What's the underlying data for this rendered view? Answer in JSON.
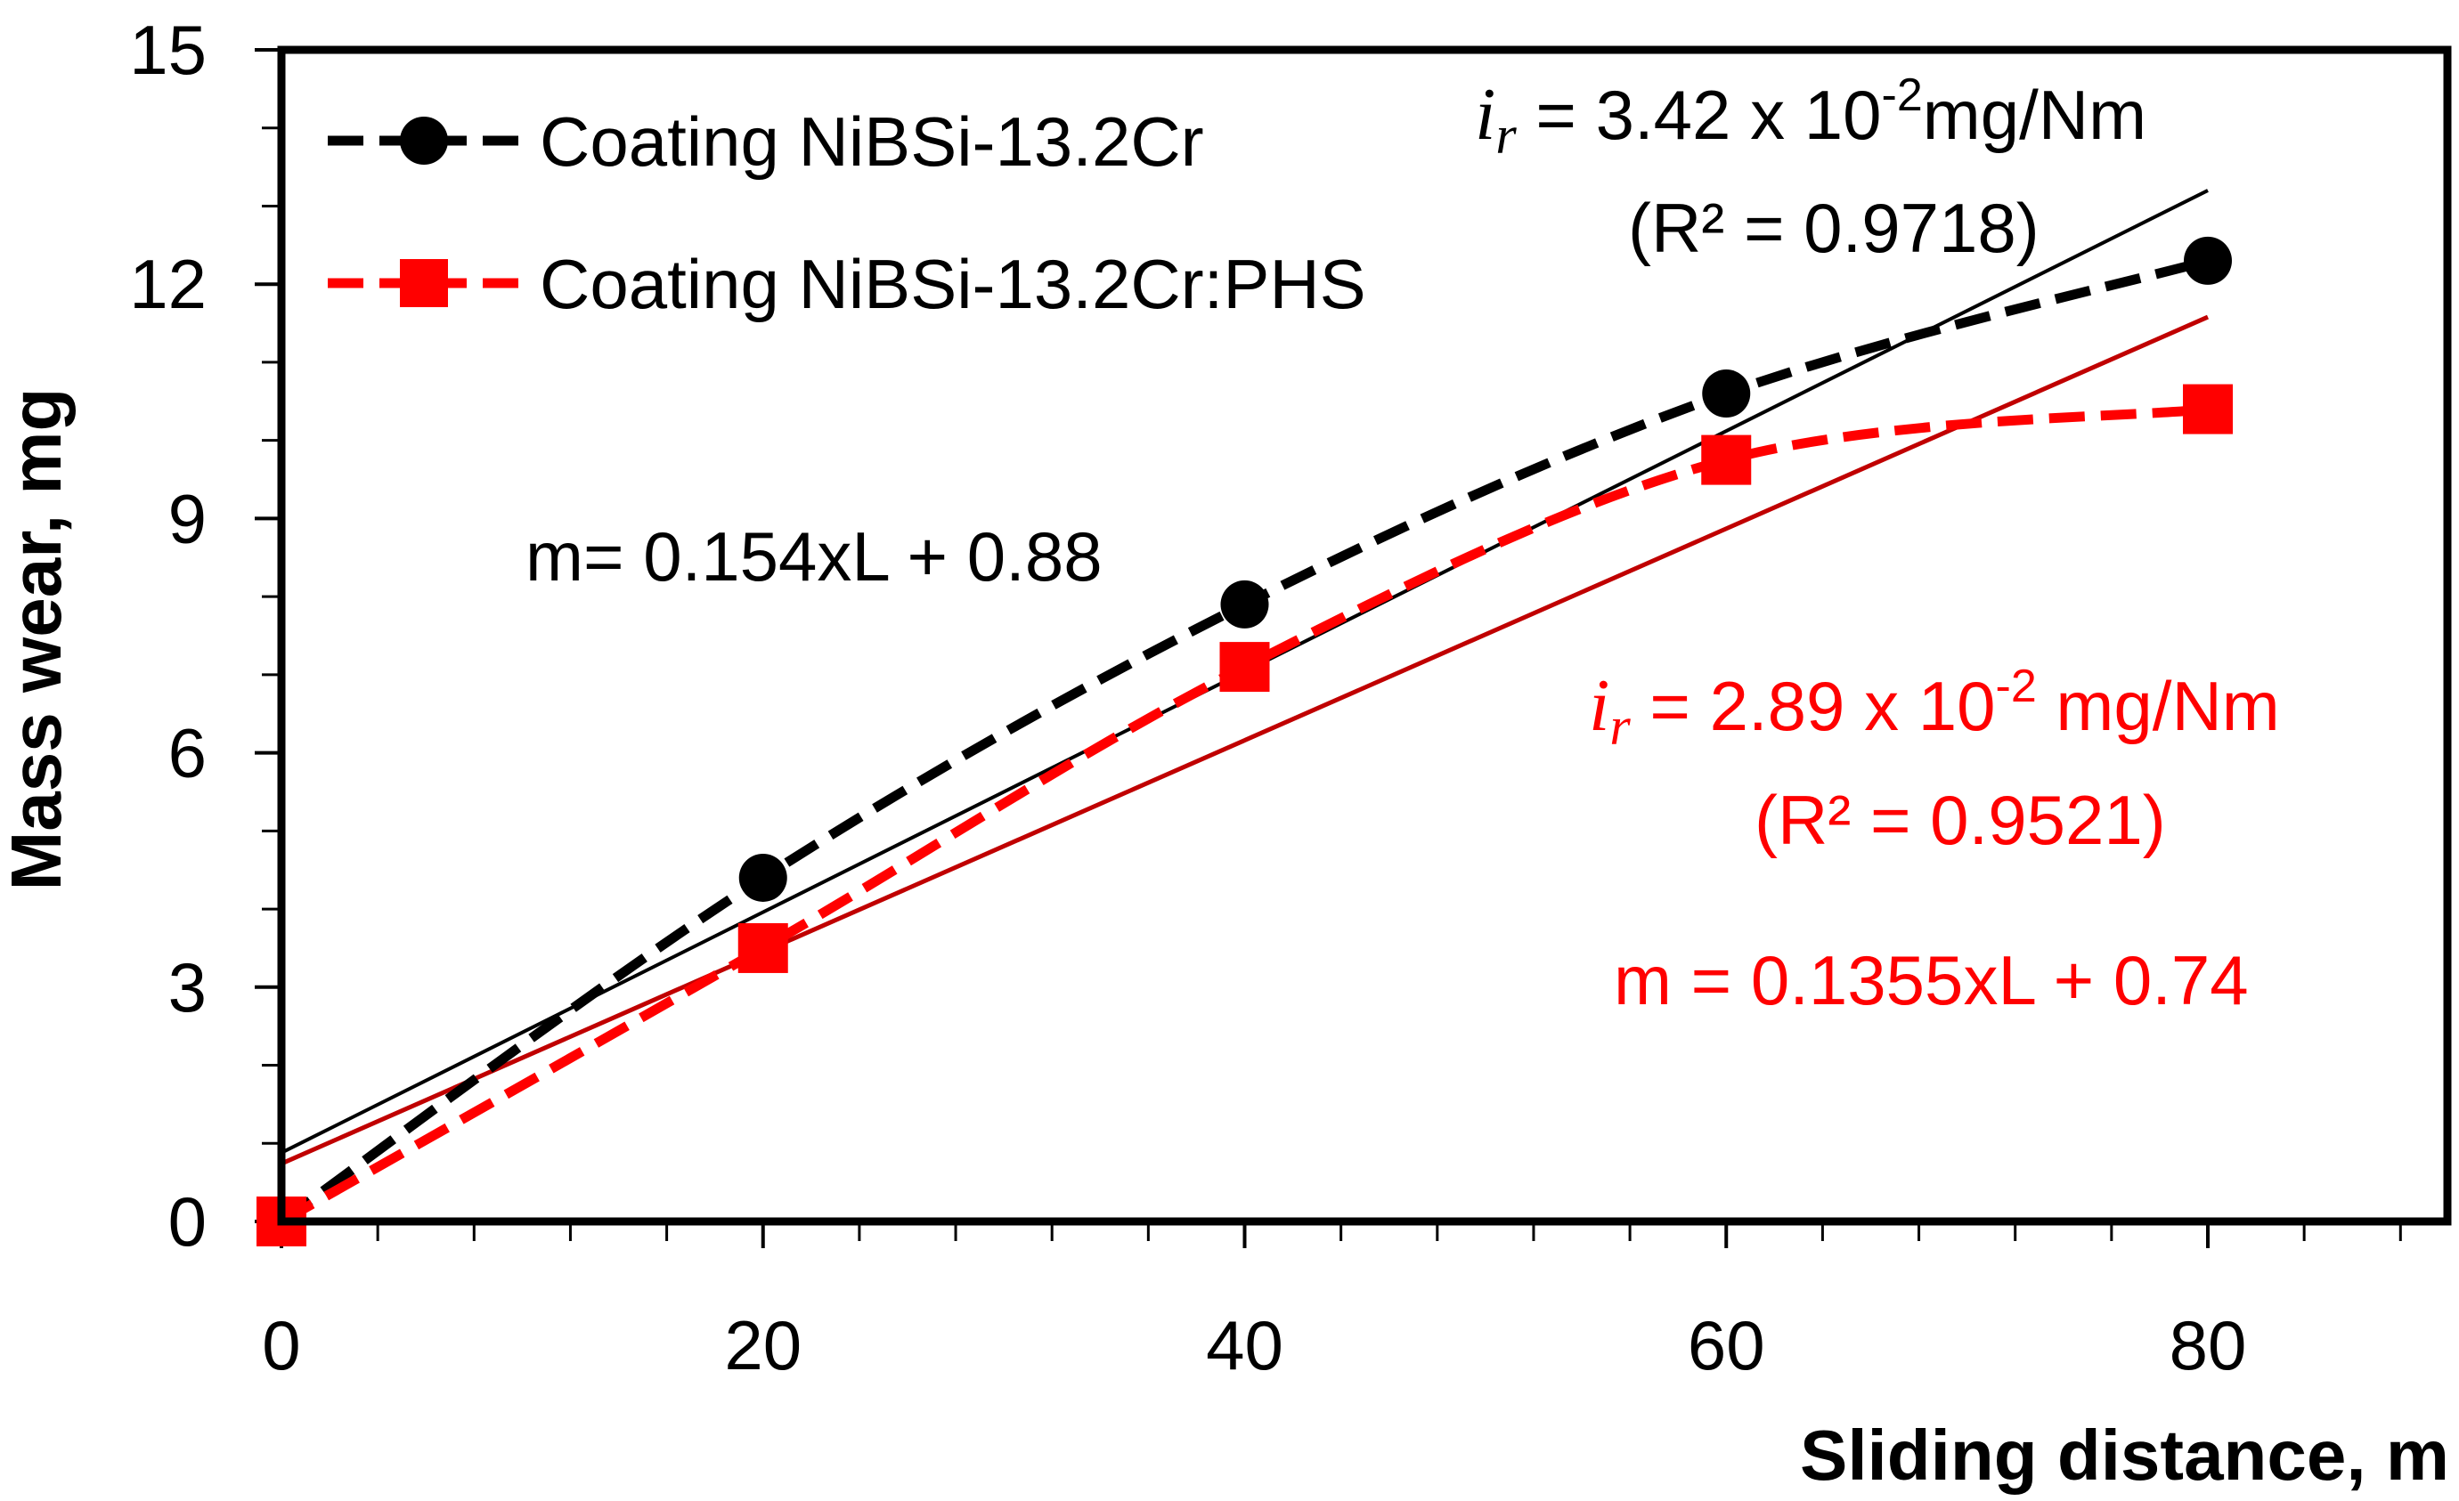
{
  "chart_data": {
    "type": "line",
    "title": "",
    "xlabel": "Sliding distance, m",
    "ylabel": "Mass wear, mg",
    "xlim": [
      0,
      90
    ],
    "ylim": [
      0,
      15
    ],
    "x_ticks": [
      0,
      20,
      40,
      60,
      80
    ],
    "y_ticks": [
      0,
      3,
      6,
      9,
      12,
      15
    ],
    "x_tick_labels": [
      "0",
      "20",
      "40",
      "60",
      "80"
    ],
    "y_tick_labels": [
      "0",
      "3",
      "6",
      "9",
      "12",
      "15"
    ],
    "x_minor_step": 4,
    "y_minor_step": 1,
    "grid": false,
    "legend_position": "top-left",
    "series": [
      {
        "name": "Coating NiBSi-13.2Cr",
        "x": [
          0,
          20,
          40,
          60,
          80
        ],
        "values": [
          0,
          4.4,
          7.9,
          10.6,
          12.3
        ],
        "color": "#000000",
        "marker": "circle",
        "line_style": "dashed",
        "trend": {
          "slope": 0.154,
          "intercept": 0.88,
          "x_range": [
            0,
            80
          ],
          "color": "#000000"
        }
      },
      {
        "name": "Coating NiBSi-13.2Cr:PHS",
        "x": [
          0,
          20,
          40,
          60,
          80
        ],
        "values": [
          0,
          3.5,
          7.1,
          9.75,
          10.4
        ],
        "color": "#ff0000",
        "marker": "square",
        "line_style": "dashed",
        "trend": {
          "slope": 0.1355,
          "intercept": 0.74,
          "x_range": [
            0,
            80
          ],
          "color": "#c00000"
        }
      }
    ],
    "annotations": {
      "black_rate_symbol": "i",
      "black_rate_subscript": "r",
      "black_rate_text": " = 3.42 x 10",
      "black_rate_exp": "-2",
      "black_rate_unit": "mg/Nm",
      "black_r2": "(R² = 0.9718)",
      "black_equation": "m= 0.154xL + 0.88",
      "red_rate_symbol": "i",
      "red_rate_subscript": "r",
      "red_rate_text": " = 2.89 x 10",
      "red_rate_exp": "-2",
      "red_rate_unit": " mg/Nm",
      "red_r2": "(R² = 0.9521)",
      "red_equation": "m = 0.1355xL + 0.74"
    }
  }
}
